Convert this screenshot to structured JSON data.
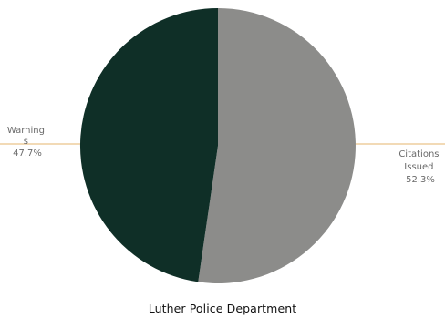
{
  "chart_data": {
    "type": "pie",
    "title": "",
    "categories": [
      "Citations Issued",
      "Warnings"
    ],
    "values": [
      52.3,
      47.7
    ],
    "value_labels": [
      "52.3%",
      "47.7%"
    ],
    "label_lines": {
      "Citations Issued": [
        "Citations",
        "Issued"
      ],
      "Warnings": [
        "Warning",
        "s"
      ]
    },
    "colors": {
      "Citations Issued": "#8c8c8a",
      "Warnings": "#0f2f27"
    },
    "leader_color": "#e0a24a",
    "legend": "none"
  },
  "footer": {
    "text": "Luther Police Department"
  }
}
